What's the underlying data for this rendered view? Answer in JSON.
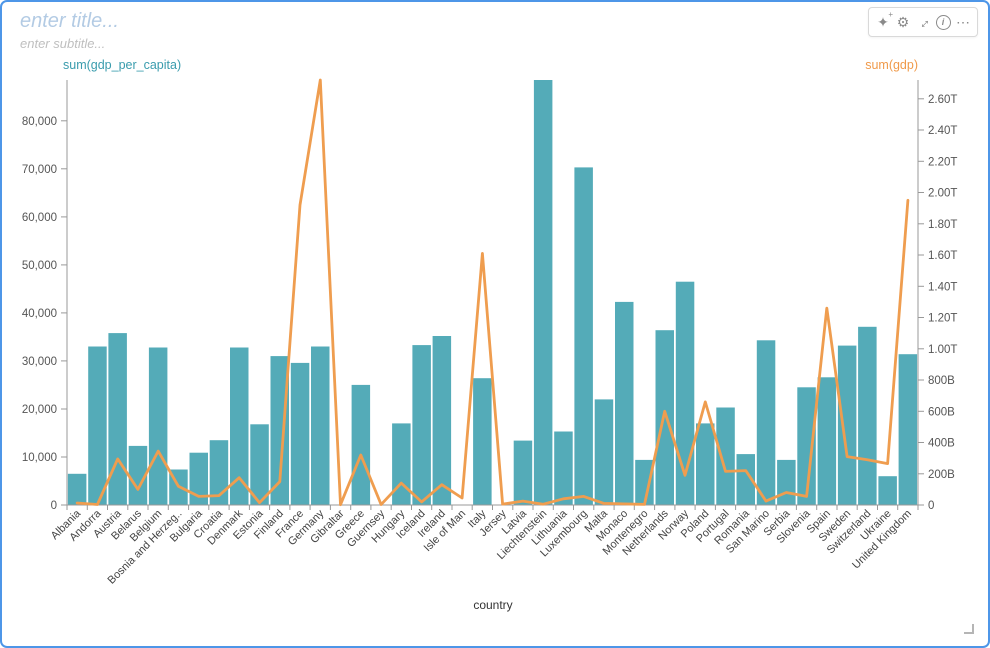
{
  "card": {
    "title_placeholder": "enter title...",
    "subtitle_placeholder": "enter subtitle..."
  },
  "toolbar": {
    "magic_glyph": "✦",
    "magic_plus_glyph": "+",
    "gear_glyph": "⚙",
    "expand_glyph": "↔",
    "info_glyph": "i",
    "more_glyph": "⋯"
  },
  "colors": {
    "bar": "#54abb8",
    "line": "#ef9d4f",
    "left_axis_label": "#3a9cad",
    "right_axis_label": "#f09a4a",
    "axis_line": "#999999",
    "tick_text": "#555555",
    "x_label_text": "#444444",
    "card_border": "#4d96e8"
  },
  "chart_data": {
    "type": "combo",
    "title": "",
    "xlabel": "country",
    "grid": false,
    "legend": "none",
    "categories": [
      "Albania",
      "Andorra",
      "Austria",
      "Belarus",
      "Belgium",
      "Bosnia and Herzeg..",
      "Bulgaria",
      "Croatia",
      "Denmark",
      "Estonia",
      "Finland",
      "France",
      "Germany",
      "Gibraltar",
      "Greece",
      "Guernsey",
      "Hungary",
      "Iceland",
      "Ireland",
      "Isle of Man",
      "Italy",
      "Jersey",
      "Latvia",
      "Liechtenstein",
      "Lithuania",
      "Luxembourg",
      "Malta",
      "Monaco",
      "Montenegro",
      "Netherlands",
      "Norway",
      "Poland",
      "Portugal",
      "Romania",
      "San Marino",
      "Serbia",
      "Slovenia",
      "Spain",
      "Sweden",
      "Switzerland",
      "Ukraine",
      "United Kingdom"
    ],
    "series": [
      {
        "name": "sum(gdp_per_capita)",
        "type": "bar",
        "yaxis": "left",
        "values": [
          6500,
          33000,
          35800,
          12300,
          32800,
          7400,
          10900,
          13500,
          32800,
          16800,
          31000,
          29600,
          33000,
          null,
          25000,
          null,
          17000,
          33300,
          35200,
          null,
          26400,
          null,
          13400,
          88500,
          15300,
          70300,
          22000,
          42300,
          9400,
          36400,
          46500,
          17000,
          20300,
          10600,
          34300,
          9400,
          24500,
          26600,
          33200,
          37100,
          6000,
          31400
        ]
      },
      {
        "name": "sum(gdp)",
        "type": "line",
        "yaxis": "right",
        "unit": "billion",
        "values": [
          13,
          3,
          295,
          100,
          345,
          120,
          55,
          60,
          175,
          15,
          150,
          1920,
          2720,
          2,
          320,
          3,
          140,
          20,
          130,
          45,
          1610,
          6,
          25,
          5,
          40,
          55,
          10,
          7,
          4,
          600,
          190,
          660,
          215,
          220,
          25,
          80,
          55,
          1260,
          310,
          290,
          265,
          1950
        ]
      }
    ],
    "left_axis": {
      "label": "sum(gdp_per_capita)",
      "tick_values": [
        0,
        10000,
        20000,
        30000,
        40000,
        50000,
        60000,
        70000,
        80000
      ],
      "tick_labels": [
        "0",
        "10,000",
        "20,000",
        "30,000",
        "40,000",
        "50,000",
        "60,000",
        "70,000",
        "80,000"
      ],
      "range": [
        0,
        88500
      ]
    },
    "right_axis": {
      "label": "sum(gdp)",
      "tick_values_billion": [
        0,
        200,
        400,
        600,
        800,
        1000,
        1200,
        1400,
        1600,
        1800,
        2000,
        2200,
        2400,
        2600
      ],
      "tick_labels": [
        "0",
        "200B",
        "400B",
        "600B",
        "800B",
        "1.00T",
        "1.20T",
        "1.40T",
        "1.60T",
        "1.80T",
        "2.00T",
        "2.20T",
        "2.40T",
        "2.60T"
      ],
      "range_billion": [
        0,
        2720
      ]
    }
  }
}
